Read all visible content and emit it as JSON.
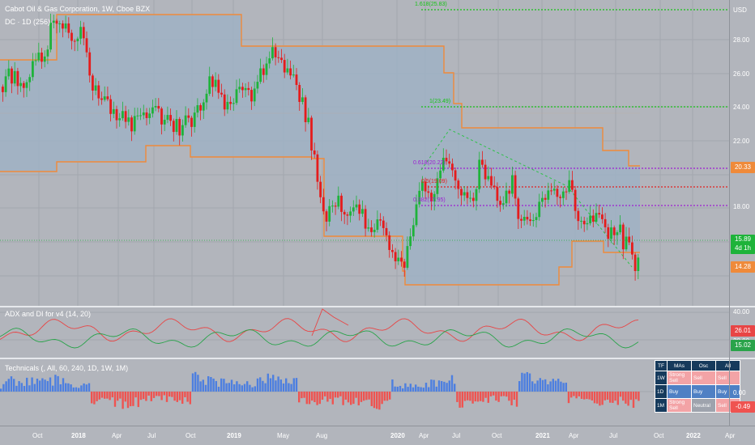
{
  "symbol_title": "Cabot Oil & Gas Corporation, 1W, Cboe BZX",
  "dc_title": "DC · 1D (256)",
  "adx_title": "ADX and DI for v4 (14, 20)",
  "tech_title": "Technicals (, All, 60, 240, 1D, 1W, 1M)",
  "currency": "USD",
  "price_axis": {
    "labels": [
      "28.00",
      "26.00",
      "24.00",
      "22.00",
      "18.00"
    ],
    "badges": {
      "upper": "20.33",
      "price": "15.89",
      "price_sub": "4d 1h",
      "lower": "14.28"
    }
  },
  "adx_axis": {
    "labels": [
      "40.00",
      "20.00"
    ],
    "badges": {
      "adx": "26.01",
      "di": "15.02"
    }
  },
  "tech_axis": {
    "labels": [
      "0.00"
    ],
    "badges": {
      "value": "-0.49"
    }
  },
  "fib_levels": [
    {
      "label": "1.618(25.83)",
      "color": "#16c216",
      "value": 25.83
    },
    {
      "label": "1(23.49)",
      "color": "#16c216",
      "value": 23.49
    },
    {
      "label": "0.618(20.22)",
      "color": "#9c1fd3",
      "value": 20.22
    },
    {
      "label": "0.5(19.09)",
      "color": "#e32020",
      "value": 19.09
    },
    {
      "label": "0.382(17.95)",
      "color": "#9c1fd3",
      "value": 17.95
    }
  ],
  "time_axis": [
    {
      "label": "Oct",
      "bold": false
    },
    {
      "label": "2018",
      "bold": true
    },
    {
      "label": "Apr",
      "bold": false
    },
    {
      "label": "Jul",
      "bold": false
    },
    {
      "label": "Oct",
      "bold": false
    },
    {
      "label": "2019",
      "bold": true
    },
    {
      "label": "May",
      "bold": false
    },
    {
      "label": "Aug",
      "bold": false
    },
    {
      "label": "2020",
      "bold": true
    },
    {
      "label": "Apr",
      "bold": false
    },
    {
      "label": "Jul",
      "bold": false
    },
    {
      "label": "Oct",
      "bold": false
    },
    {
      "label": "2021",
      "bold": true
    },
    {
      "label": "Apr",
      "bold": false
    },
    {
      "label": "Jul",
      "bold": false
    },
    {
      "label": "Oct",
      "bold": false
    },
    {
      "label": "2022",
      "bold": true
    },
    {
      "label": "Apr",
      "bold": false
    }
  ],
  "tech_table": {
    "headers": [
      "TF",
      "MAs",
      "Osc",
      "All"
    ],
    "rows": [
      {
        "tf": "1W",
        "mas": "Strong Sell",
        "osc": "Sell",
        "all": "Sell",
        "mas_class": "sell",
        "osc_class": "sell",
        "all_class": "sell"
      },
      {
        "tf": "1D",
        "mas": "Buy",
        "osc": "Buy",
        "all": "Buy",
        "mas_class": "buy",
        "osc_class": "buy",
        "all_class": "buy"
      },
      {
        "tf": "1M",
        "mas": "Strong Sell",
        "osc": "Neutral",
        "all": "Sell",
        "mas_class": "sell",
        "osc_class": "neutral",
        "all_class": "sell"
      }
    ]
  },
  "colors": {
    "up": "#1eb33a",
    "down": "#e51c1c",
    "channel": "#ef8a3a",
    "channel_fill": "#9fb2c4",
    "adx_red": "#e84545",
    "adx_green": "#29a34a",
    "hist_blue": "#4d7fe0",
    "hist_red": "#ef5350"
  }
}
